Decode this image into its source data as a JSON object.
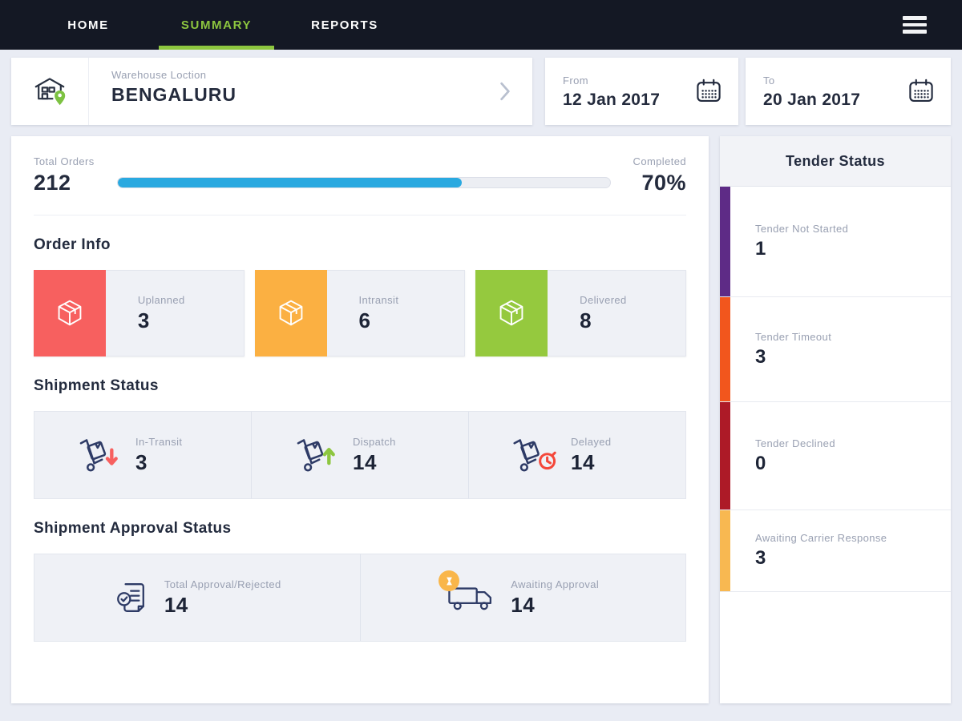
{
  "nav": {
    "items": [
      {
        "label": "HOME",
        "active": false
      },
      {
        "label": "SUMMARY",
        "active": true
      },
      {
        "label": "REPORTS",
        "active": false
      }
    ],
    "active_color": "#8dc63f",
    "bg_color": "#141824"
  },
  "filters": {
    "warehouse": {
      "label": "Warehouse Loction",
      "value": "BENGALURU",
      "icon": "warehouse-pin-icon"
    },
    "from": {
      "label": "From",
      "value": "12 Jan 2017",
      "icon": "calendar-icon"
    },
    "to": {
      "label": "To",
      "value": "20 Jan 2017",
      "icon": "calendar-icon"
    }
  },
  "summary": {
    "total_orders": {
      "label": "Total Orders",
      "value": "212"
    },
    "completed": {
      "label": "Completed",
      "value": "70%",
      "percent": 70,
      "bar_color": "#2aa9e0"
    }
  },
  "order_info": {
    "title": "Order Info",
    "cards": [
      {
        "label": "Uplanned",
        "value": "3",
        "color": "#f7605f",
        "icon": "package-icon"
      },
      {
        "label": "Intransit",
        "value": "6",
        "color": "#fbb042",
        "icon": "package-icon"
      },
      {
        "label": "Delivered",
        "value": "8",
        "color": "#95c93e",
        "icon": "package-icon"
      }
    ]
  },
  "shipment_status": {
    "title": "Shipment Status",
    "cells": [
      {
        "label": "In-Transit",
        "value": "3",
        "icon": "handtruck-arrow-down-icon",
        "accent": "#f7605f"
      },
      {
        "label": "Dispatch",
        "value": "14",
        "icon": "handtruck-arrow-up-icon",
        "accent": "#8dc63f"
      },
      {
        "label": "Delayed",
        "value": "14",
        "icon": "handtruck-clock-icon",
        "accent": "#f4473a"
      }
    ]
  },
  "approval_status": {
    "title": "Shipment Approval Status",
    "cells": [
      {
        "label": "Total Approval/Rejected",
        "value": "14",
        "icon": "document-check-icon"
      },
      {
        "label": "Awaiting Approval",
        "value": "14",
        "icon": "truck-hourglass-icon",
        "badge_color": "#f9b64a"
      }
    ]
  },
  "tender_status": {
    "title": "Tender Status",
    "items": [
      {
        "label": "Tender Not Started",
        "value": "1",
        "color": "#5e2b86"
      },
      {
        "label": "Tender Timeout",
        "value": "3",
        "color": "#f2561d"
      },
      {
        "label": "Tender Declined",
        "value": "0",
        "color": "#ad1a27"
      },
      {
        "label": "Awaiting Carrier Response",
        "value": "3",
        "color": "#f8b851"
      }
    ]
  }
}
